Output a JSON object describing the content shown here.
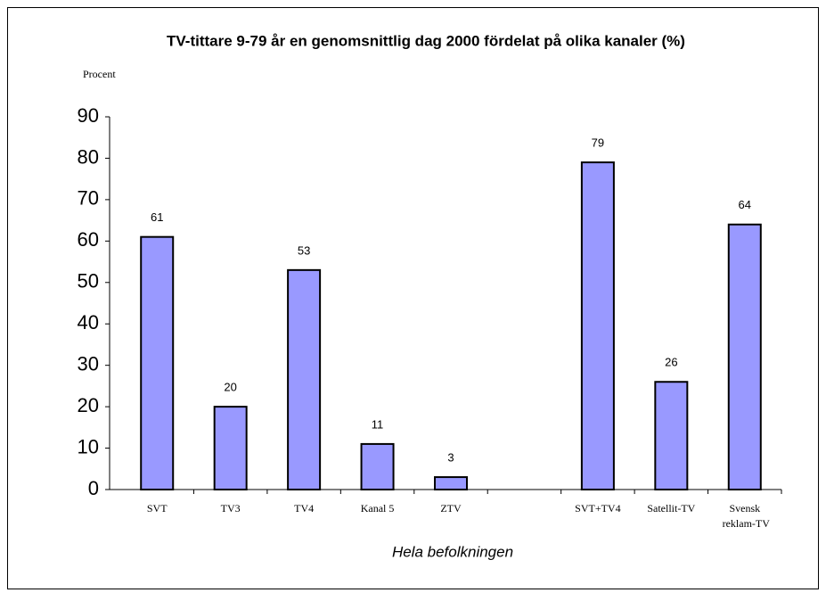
{
  "chart_data": {
    "type": "bar",
    "title": "TV-tittare 9-79 år en genomsnittlig dag 2000 fördelat på olika kanaler (%)",
    "ylabel": "Procent",
    "xlabel": "Hela befolkningen",
    "categories": [
      "SVT",
      "TV3",
      "TV4",
      "Kanal 5",
      "ZTV",
      null,
      "SVT+TV4",
      "Satellit-TV",
      "Svensk reklam-TV"
    ],
    "values": [
      61,
      20,
      53,
      11,
      3,
      null,
      79,
      26,
      64
    ],
    "color": "#9999ff",
    "ylim": [
      0,
      90
    ],
    "yticks": [
      0,
      10,
      20,
      30,
      40,
      50,
      60,
      70,
      80,
      90
    ],
    "grid": false
  }
}
